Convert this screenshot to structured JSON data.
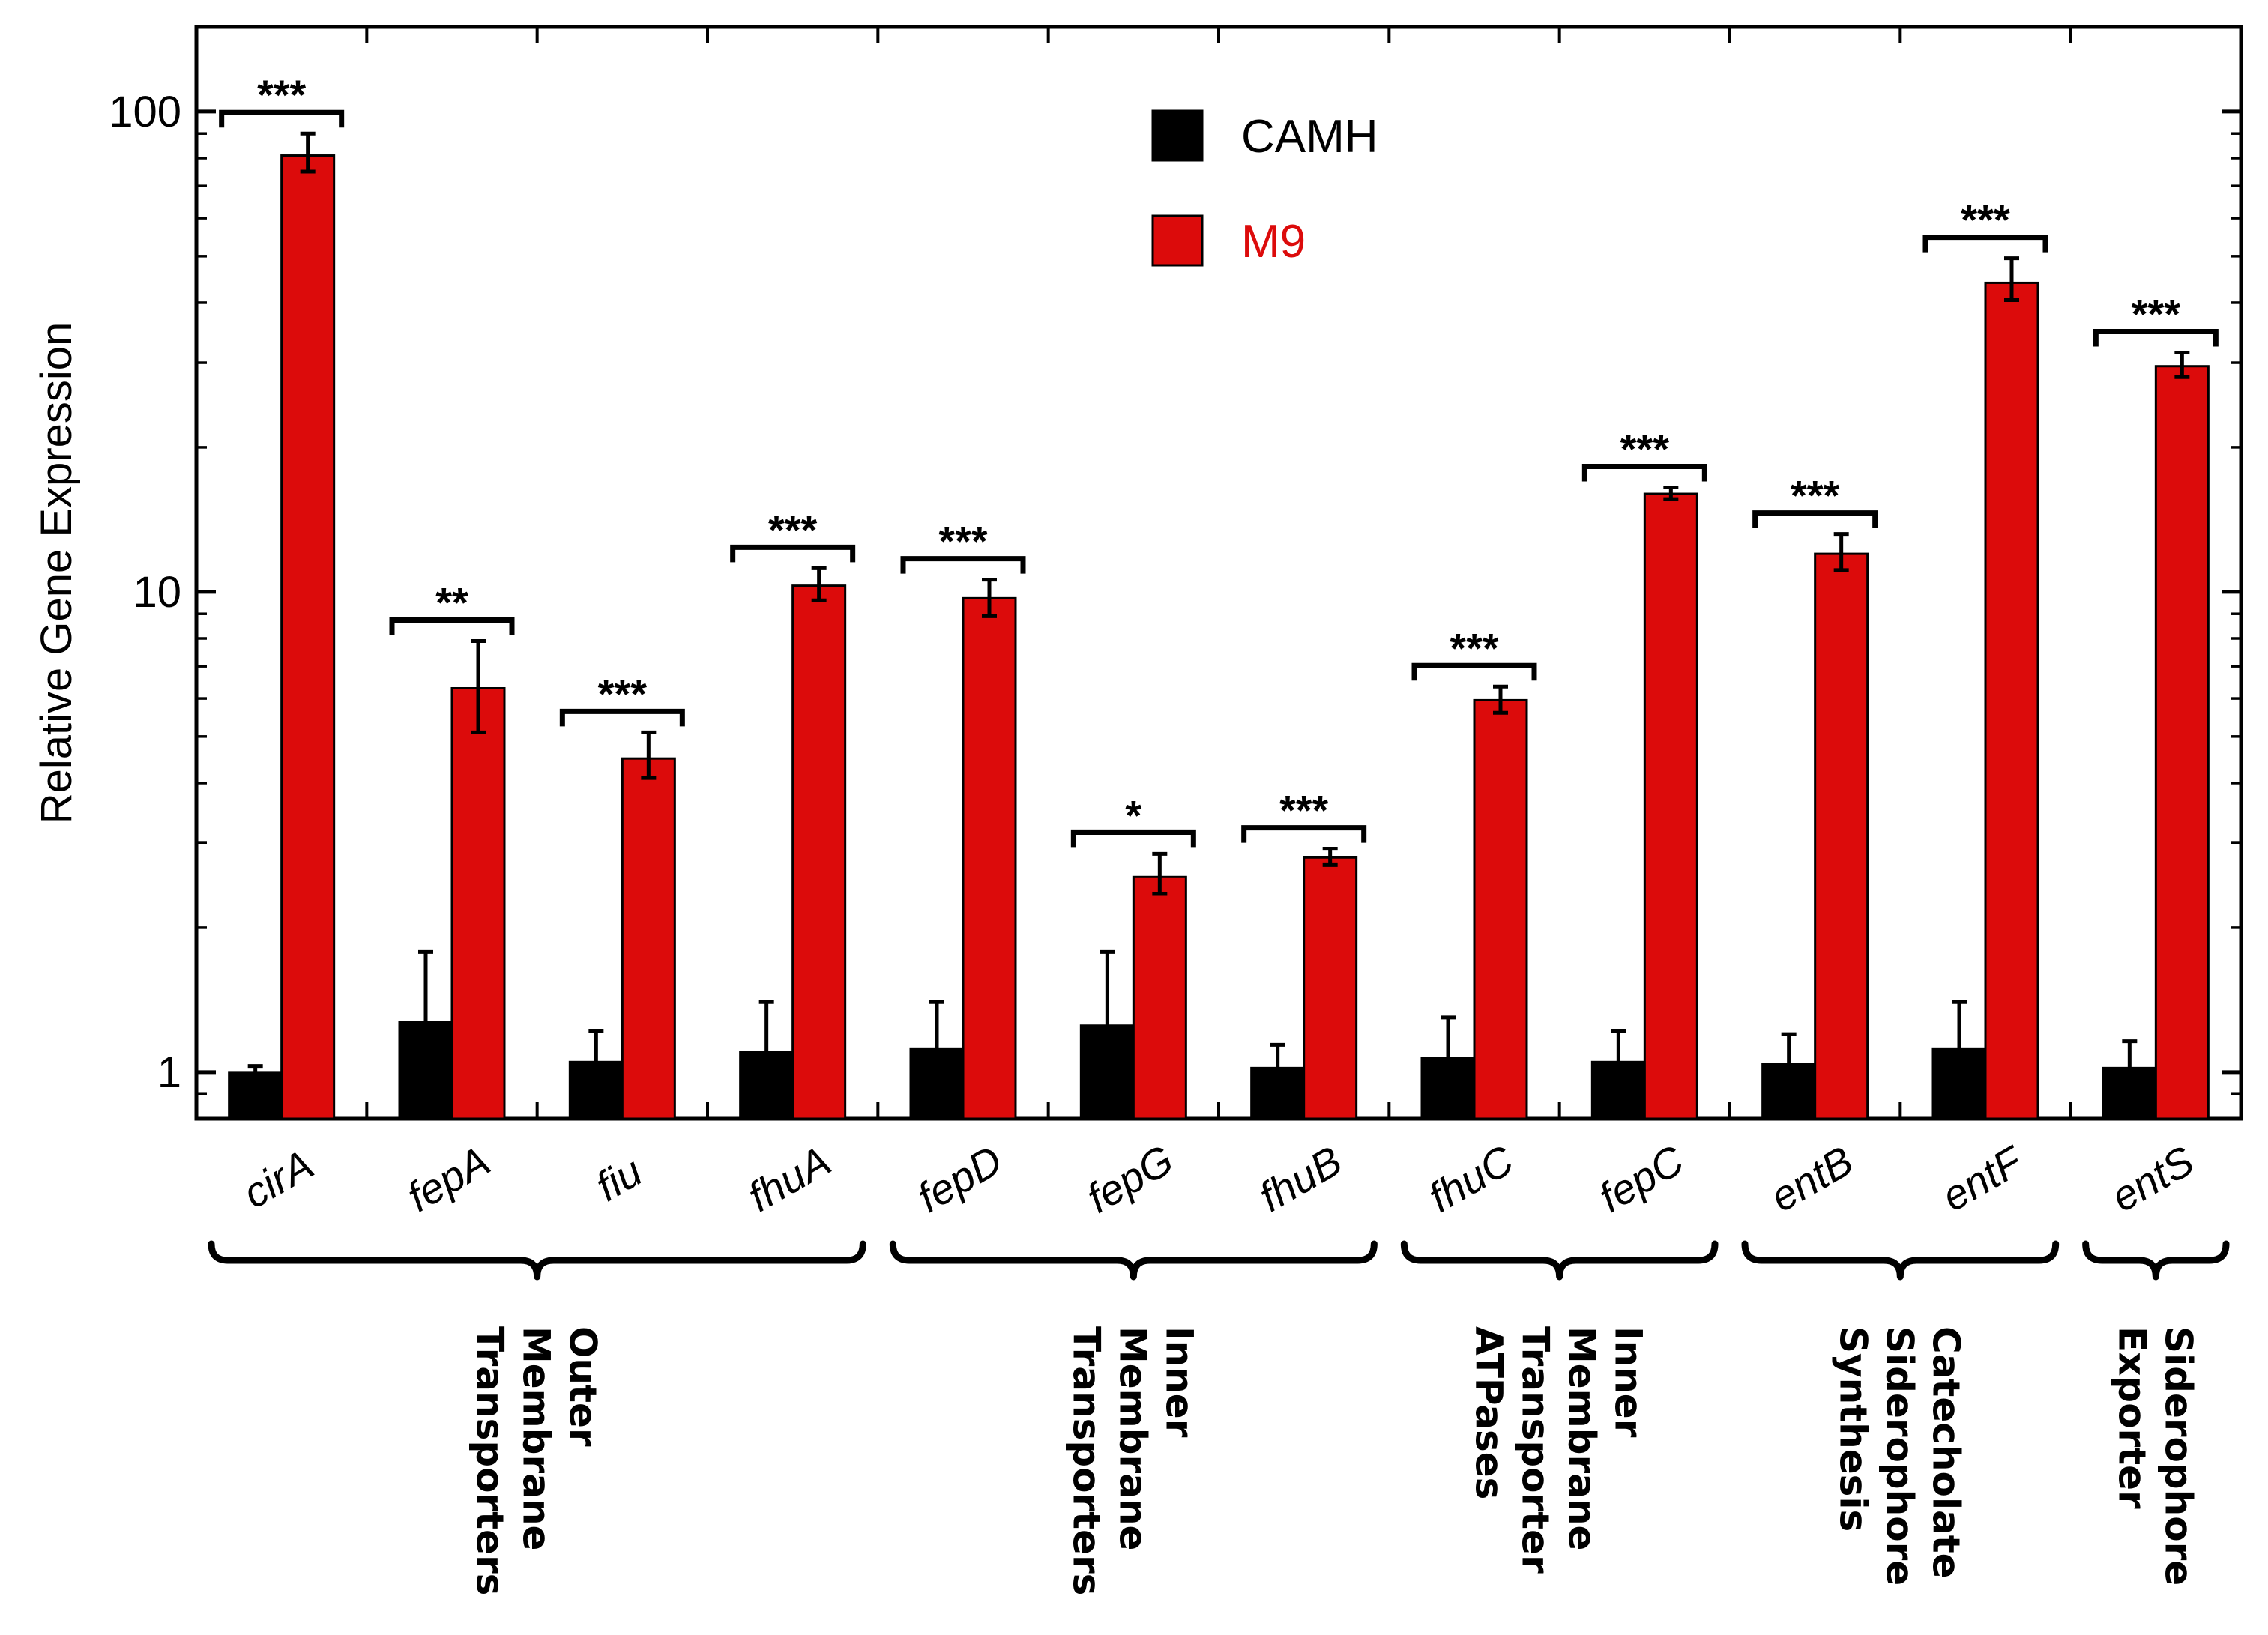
{
  "chart_data": {
    "type": "bar",
    "title": "",
    "xlabel": "",
    "ylabel": "Relative Gene Expression",
    "yscale": "log",
    "ylim": [
      0.8,
      150
    ],
    "y_ticks": [
      1,
      10,
      100
    ],
    "y_tick_labels": [
      "1",
      "10",
      "100"
    ],
    "categories": [
      "cirA",
      "fepA",
      "fiu",
      "fhuA",
      "fepD",
      "fepG",
      "fhuB",
      "fhuC",
      "fepC",
      "entB",
      "entF",
      "entS"
    ],
    "series": [
      {
        "name": "CAMH",
        "color": "#000000",
        "values": [
          1.0,
          1.27,
          1.05,
          1.1,
          1.12,
          1.25,
          1.02,
          1.07,
          1.05,
          1.04,
          1.12,
          1.02
        ],
        "err_upper": [
          1.03,
          1.78,
          1.22,
          1.4,
          1.4,
          1.78,
          1.14,
          1.3,
          1.22,
          1.2,
          1.4,
          1.16
        ],
        "err_lower": [
          0.97,
          1.27,
          1.05,
          1.1,
          1.12,
          1.25,
          1.02,
          1.07,
          1.05,
          1.04,
          1.12,
          1.02
        ]
      },
      {
        "name": "M9",
        "color": "#dc0b0b",
        "values": [
          81,
          6.3,
          4.5,
          10.3,
          9.7,
          2.55,
          2.8,
          5.95,
          16,
          12,
          44,
          29.5
        ],
        "err_upper": [
          90,
          7.9,
          5.1,
          11.2,
          10.6,
          2.85,
          2.92,
          6.35,
          16.5,
          13.2,
          49.5,
          31.5
        ],
        "err_lower": [
          75,
          5.1,
          4.1,
          9.6,
          8.9,
          2.35,
          2.7,
          5.6,
          15.6,
          11.1,
          40.5,
          28
        ]
      }
    ],
    "significance": [
      "***",
      "**",
      "***",
      "***",
      "***",
      "*",
      "***",
      "***",
      "***",
      "***",
      "***",
      "***"
    ],
    "groups": [
      {
        "name_lines": [
          "Outer",
          "Membrane",
          "Transporters"
        ],
        "span": [
          0,
          3
        ]
      },
      {
        "name_lines": [
          "Inner",
          "Membrane",
          "Transporters"
        ],
        "span": [
          4,
          6
        ]
      },
      {
        "name_lines": [
          "Inner",
          "Membrane",
          "Transporter",
          "ATPases"
        ],
        "span": [
          7,
          8
        ]
      },
      {
        "name_lines": [
          "Catecholate",
          "Siderophore",
          "Synthesis"
        ],
        "span": [
          9,
          10
        ]
      },
      {
        "name_lines": [
          "Siderophore",
          "Exporter"
        ],
        "span": [
          11,
          11
        ]
      }
    ],
    "legend": {
      "position": "top-center",
      "entries": [
        "CAMH",
        "M9"
      ]
    }
  }
}
